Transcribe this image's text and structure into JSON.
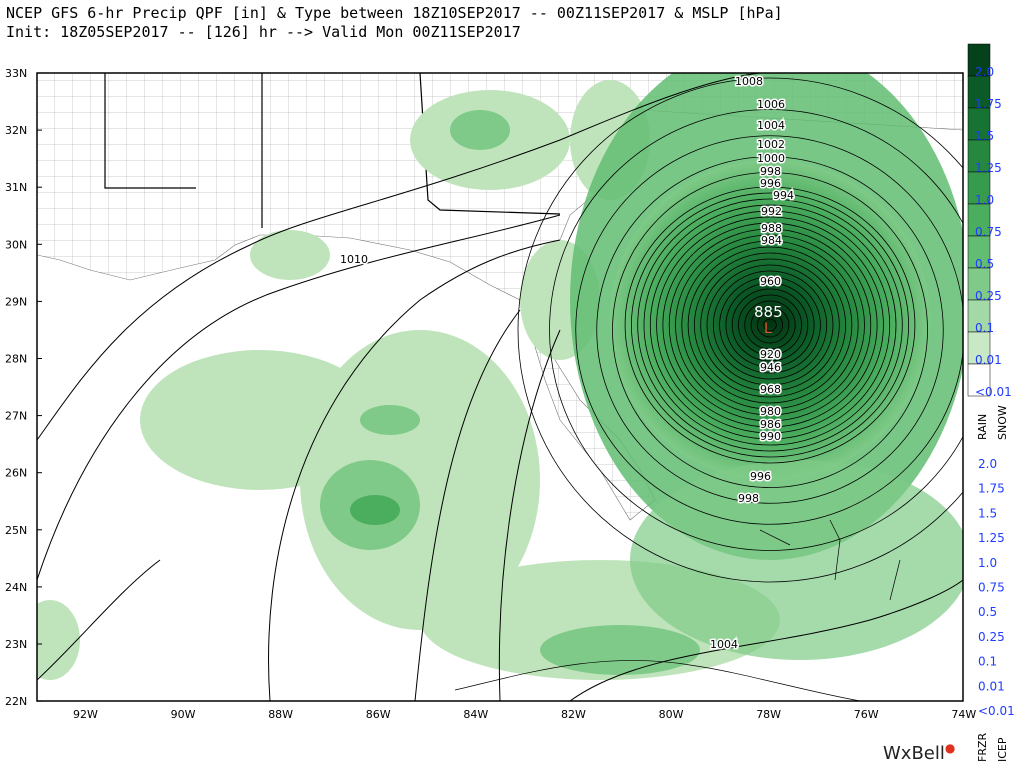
{
  "header": {
    "line1": "NCEP GFS 6-hr Precip QPF [in] & Type between 18Z10SEP2017 -- 00Z11SEP2017 & MSLP [hPa]",
    "line2": "Init: 18Z05SEP2017 -- [126] hr --> Valid Mon 00Z11SEP2017"
  },
  "axes": {
    "lat_labels": [
      "33N",
      "32N",
      "31N",
      "30N",
      "29N",
      "28N",
      "27N",
      "26N",
      "25N",
      "24N",
      "23N",
      "22N"
    ],
    "lon_labels": [
      "92W",
      "90W",
      "88W",
      "86W",
      "84W",
      "82W",
      "80W",
      "78W",
      "76W",
      "74W"
    ]
  },
  "legend": {
    "rain_label": "RAIN",
    "snow_label": "SNOW",
    "frzr_label": "FRZR",
    "icep_label": "ICEP",
    "rain_values": [
      "2.0",
      "1.75",
      "1.5",
      "1.25",
      "1.0",
      "0.75",
      "0.5",
      "0.25",
      "0.1",
      "0.01",
      "<0.01"
    ],
    "snow_values": [
      "2.0",
      "1.75",
      "1.5",
      "1.25",
      "1.0",
      "0.75",
      "0.5",
      "0.25",
      "0.1",
      "0.01",
      "<0.01"
    ],
    "colors": [
      "#05421c",
      "#0b5a27",
      "#177333",
      "#26883f",
      "#379b4d",
      "#4bad5e",
      "#62bd72",
      "#7fca88",
      "#a3d9a6",
      "#c8e8c6",
      "#ffffff"
    ]
  },
  "isobars": {
    "labels": [
      "1008",
      "1006",
      "1004",
      "1002",
      "1000",
      "998",
      "996",
      "994",
      "992",
      "988",
      "984",
      "960",
      "920",
      "946",
      "968",
      "980",
      "986",
      "990",
      "996",
      "998",
      "1010",
      "1004"
    ],
    "low_center_value": "885",
    "low_center_marker": "L"
  },
  "brand": {
    "name": "WxBell",
    "logo": "wxbell-logo"
  }
}
